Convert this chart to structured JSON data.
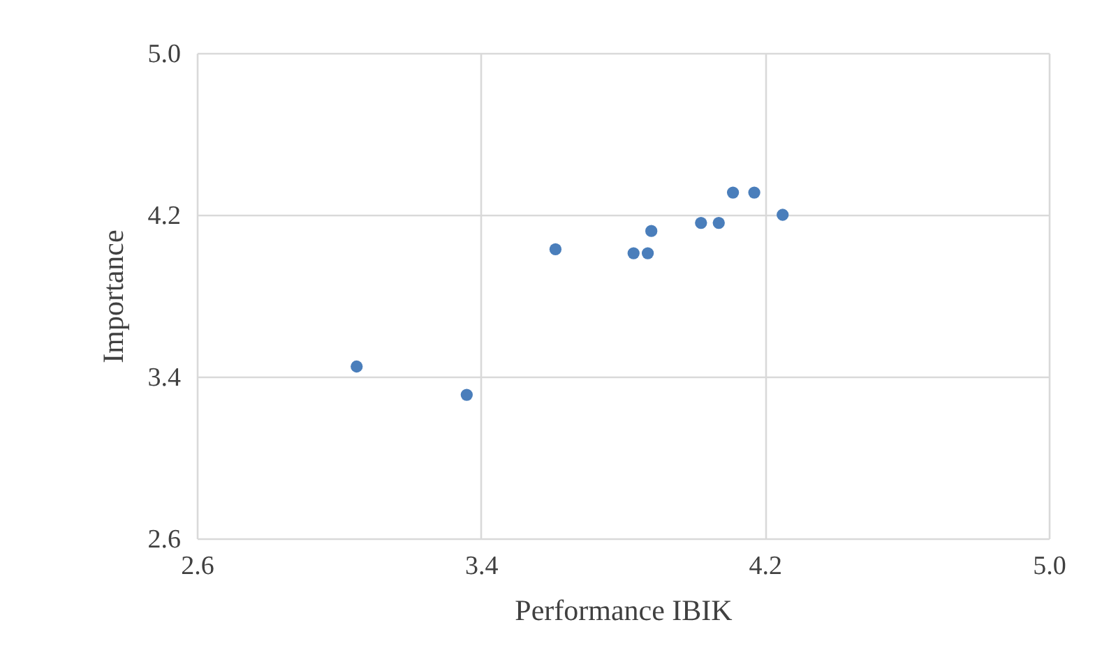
{
  "chart_data": {
    "type": "scatter",
    "xlabel": "Performance IBIK",
    "ylabel": "Importance",
    "x": [
      3.05,
      3.36,
      3.61,
      3.83,
      3.87,
      3.88,
      4.02,
      4.07,
      4.11,
      4.17,
      4.25
    ],
    "series": [
      {
        "color": "#4a7ebb",
        "values": [
          3.45,
          3.31,
          4.03,
          4.01,
          4.01,
          4.12,
          4.16,
          4.16,
          4.31,
          4.31,
          4.2
        ]
      }
    ],
    "xlim": [
      2.6,
      5.0
    ],
    "xticks": [
      {
        "value": 2.6,
        "label": "2.6"
      },
      {
        "value": 3.4,
        "label": "3.4"
      },
      {
        "value": 4.2,
        "label": "4.2"
      },
      {
        "value": 5.0,
        "label": "5.0"
      }
    ],
    "ylim": [
      2.6,
      5.0
    ],
    "yticks": [
      {
        "value": 2.6,
        "label": "2.6"
      },
      {
        "value": 3.4,
        "label": "3.4"
      },
      {
        "value": 4.2,
        "label": "4.2"
      },
      {
        "value": 5.0,
        "label": "5.0"
      }
    ],
    "grid": true,
    "marker": "circle"
  }
}
